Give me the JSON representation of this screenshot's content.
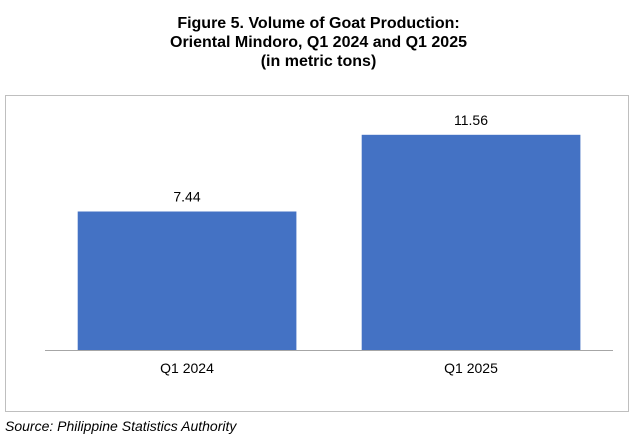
{
  "figure": {
    "title_lines": [
      "Figure 5. Volume of Goat Production:",
      "Oriental Mindoro, Q1 2024 and Q1 2025",
      "(in metric tons)"
    ],
    "source": "Source: Philippine Statistics Authority"
  },
  "chart_data": {
    "type": "bar",
    "title": "Figure 5. Volume of Goat Production: Oriental Mindoro, Q1 2024 and Q1 2025 (in metric tons)",
    "categories": [
      "Q1 2024",
      "Q1 2025"
    ],
    "values": [
      7.44,
      11.56
    ],
    "value_labels": [
      "7.44",
      "11.56"
    ],
    "ylim": [
      0,
      13.7
    ],
    "grid": false,
    "legend": "none",
    "bar_color": "#4472c4",
    "axis_color": "#a6a6a6"
  }
}
